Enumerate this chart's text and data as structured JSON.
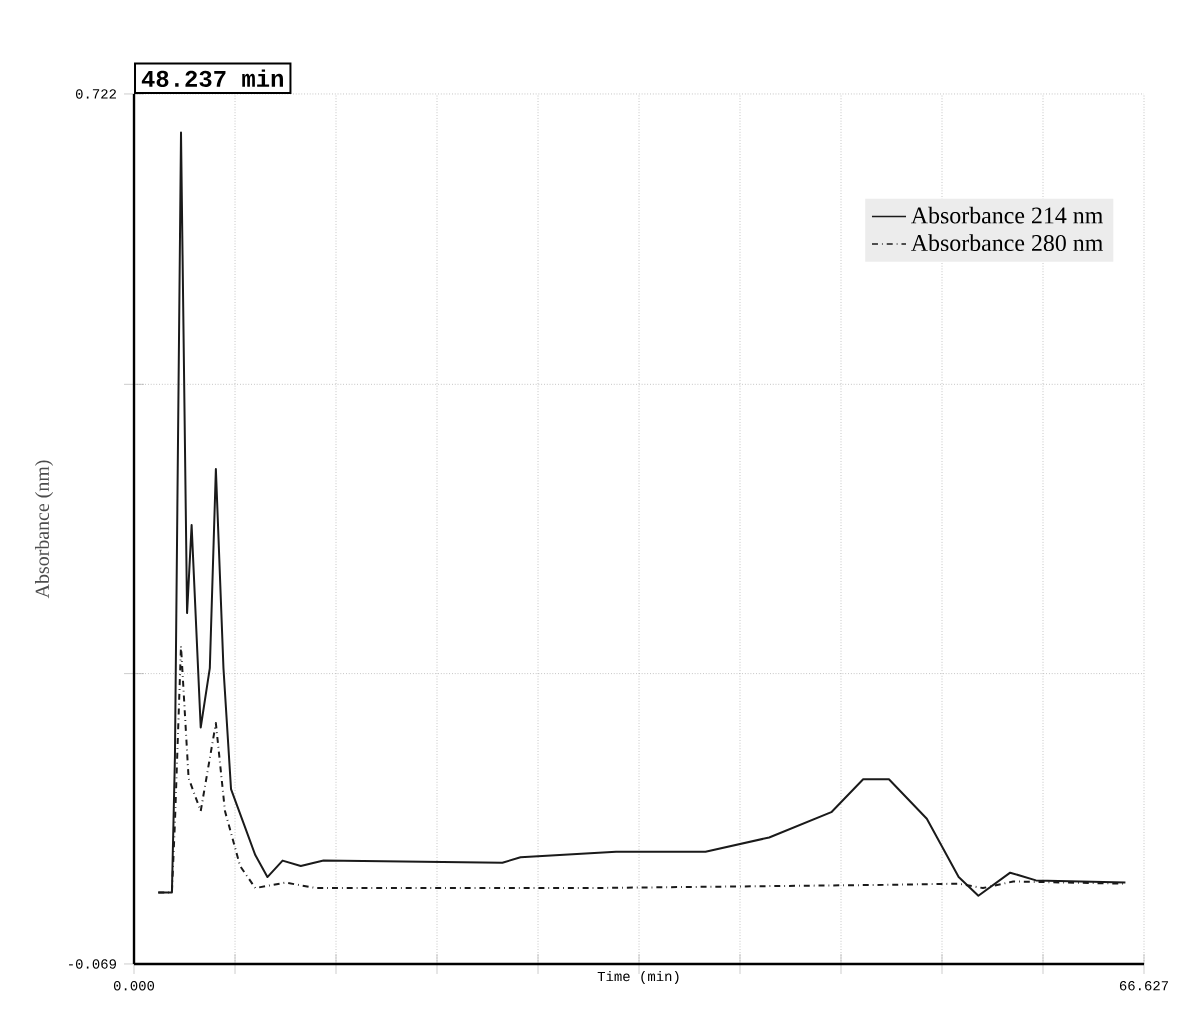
{
  "chart_data": {
    "type": "line",
    "xlabel": "Time (min)",
    "ylabel": "Absorbance (nm)",
    "annotations": [
      "48.237 min"
    ],
    "xlim": [
      0,
      66.627
    ],
    "ylim": [
      -0.069,
      0.722
    ],
    "xticks": [
      {
        "value": 0,
        "label": "0.000"
      },
      {
        "value": 6.663,
        "label": null
      },
      {
        "value": 13.325,
        "label": null
      },
      {
        "value": 19.988,
        "label": null
      },
      {
        "value": 26.651,
        "label": null
      },
      {
        "value": 33.314,
        "label": null
      },
      {
        "value": 39.976,
        "label": null
      },
      {
        "value": 46.639,
        "label": null
      },
      {
        "value": 53.302,
        "label": null
      },
      {
        "value": 59.964,
        "label": null
      },
      66.627
    ],
    "yticks": [
      -0.069,
      {
        "value": 0.195,
        "label": null
      },
      {
        "value": 0.458,
        "label": null
      },
      0.722
    ],
    "grid": true,
    "legend": "top right",
    "series": [
      {
        "name": "Absorbance 214 nm",
        "color": "#1a1a1a",
        "line_style": "solid",
        "x": [
          1.6,
          2.5,
          2.7,
          3.1,
          3.5,
          3.8,
          4.4,
          5.0,
          5.4,
          5.9,
          6.4,
          7.2,
          8.0,
          8.8,
          9.8,
          11,
          12.5,
          24.3,
          25.5,
          31.8,
          37.7,
          41.9,
          46.0,
          48.1,
          49.8,
          52.3,
          54.4,
          55.7,
          57.8,
          59.5,
          65.4
        ],
        "values": [
          -0.004,
          -0.004,
          0.12,
          0.687,
          0.25,
          0.33,
          0.146,
          0.2,
          0.381,
          0.2,
          0.09,
          0.06,
          0.03,
          0.01,
          0.025,
          0.02,
          0.025,
          0.023,
          0.028,
          0.033,
          0.033,
          0.046,
          0.069,
          0.099,
          0.099,
          0.063,
          0.01,
          -0.007,
          0.014,
          0.007,
          0.005
        ]
      },
      {
        "name": "Absorbance 280 nm",
        "color": "#1a1a1a",
        "line_style": "dashdot",
        "x": [
          1.6,
          2.5,
          2.7,
          3.1,
          3.6,
          4.4,
          5.4,
          6.0,
          7.0,
          8.0,
          10,
          12,
          30,
          50,
          54.4,
          56,
          58,
          65.4
        ],
        "values": [
          -0.004,
          -0.004,
          0.06,
          0.22,
          0.1,
          0.07,
          0.15,
          0.07,
          0.02,
          0.0,
          0.005,
          0.0,
          0.0,
          0.003,
          0.004,
          0.0,
          0.006,
          0.004
        ]
      }
    ]
  }
}
